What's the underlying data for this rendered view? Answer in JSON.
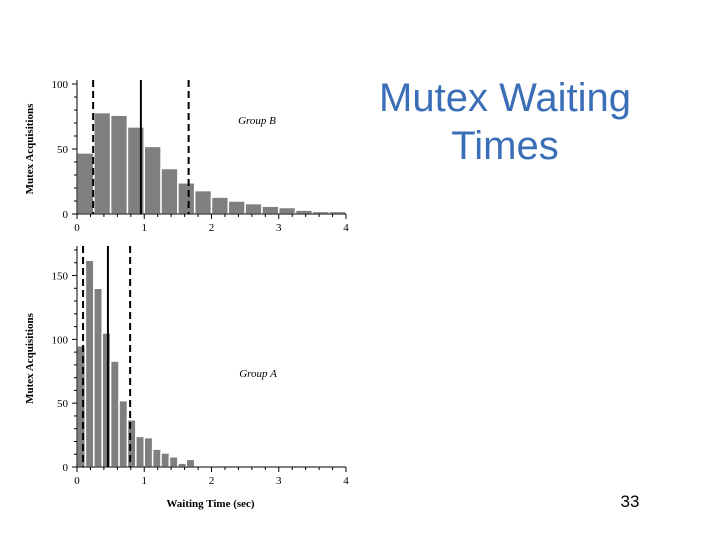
{
  "slide": {
    "title": "Mutex Waiting Times",
    "number": "33"
  },
  "colors": {
    "title": "#3a6fb8",
    "bar_fill": "#7f7f7f",
    "bar_stroke": "#ffffff"
  },
  "chart_data": [
    {
      "type": "bar",
      "label": "Group B",
      "xlabel": "",
      "ylabel": "Mutex Acquisitions",
      "bin_width": 0.25,
      "x_start": 0,
      "xlim": [
        0,
        4
      ],
      "ylim": [
        0,
        100
      ],
      "xticks": [
        0,
        1,
        2,
        3,
        4
      ],
      "yticks": [
        0,
        50,
        100
      ],
      "values": [
        47,
        78,
        76,
        67,
        52,
        35,
        24,
        18,
        13,
        10,
        8,
        6,
        5,
        3,
        2,
        2
      ],
      "reference_lines": [
        {
          "x": 0.24,
          "style": "dashed"
        },
        {
          "x": 0.95,
          "style": "solid"
        },
        {
          "x": 1.66,
          "style": "dashed"
        }
      ],
      "grid": false
    },
    {
      "type": "bar",
      "label": "Group A",
      "xlabel": "Waiting Time (sec)",
      "ylabel": "Mutex Acquisitions",
      "bin_width": 0.125,
      "x_start": 0,
      "xlim": [
        0,
        4
      ],
      "ylim": [
        0,
        170
      ],
      "xticks": [
        0,
        1,
        2,
        3,
        4
      ],
      "yticks": [
        0,
        50,
        100,
        150
      ],
      "values": [
        95,
        162,
        140,
        105,
        83,
        52,
        37,
        24,
        23,
        14,
        11,
        8,
        3,
        6,
        1,
        1,
        1
      ],
      "reference_lines": [
        {
          "x": 0.09,
          "style": "dashed"
        },
        {
          "x": 0.46,
          "style": "solid"
        },
        {
          "x": 0.79,
          "style": "dashed"
        }
      ],
      "grid": false
    }
  ]
}
